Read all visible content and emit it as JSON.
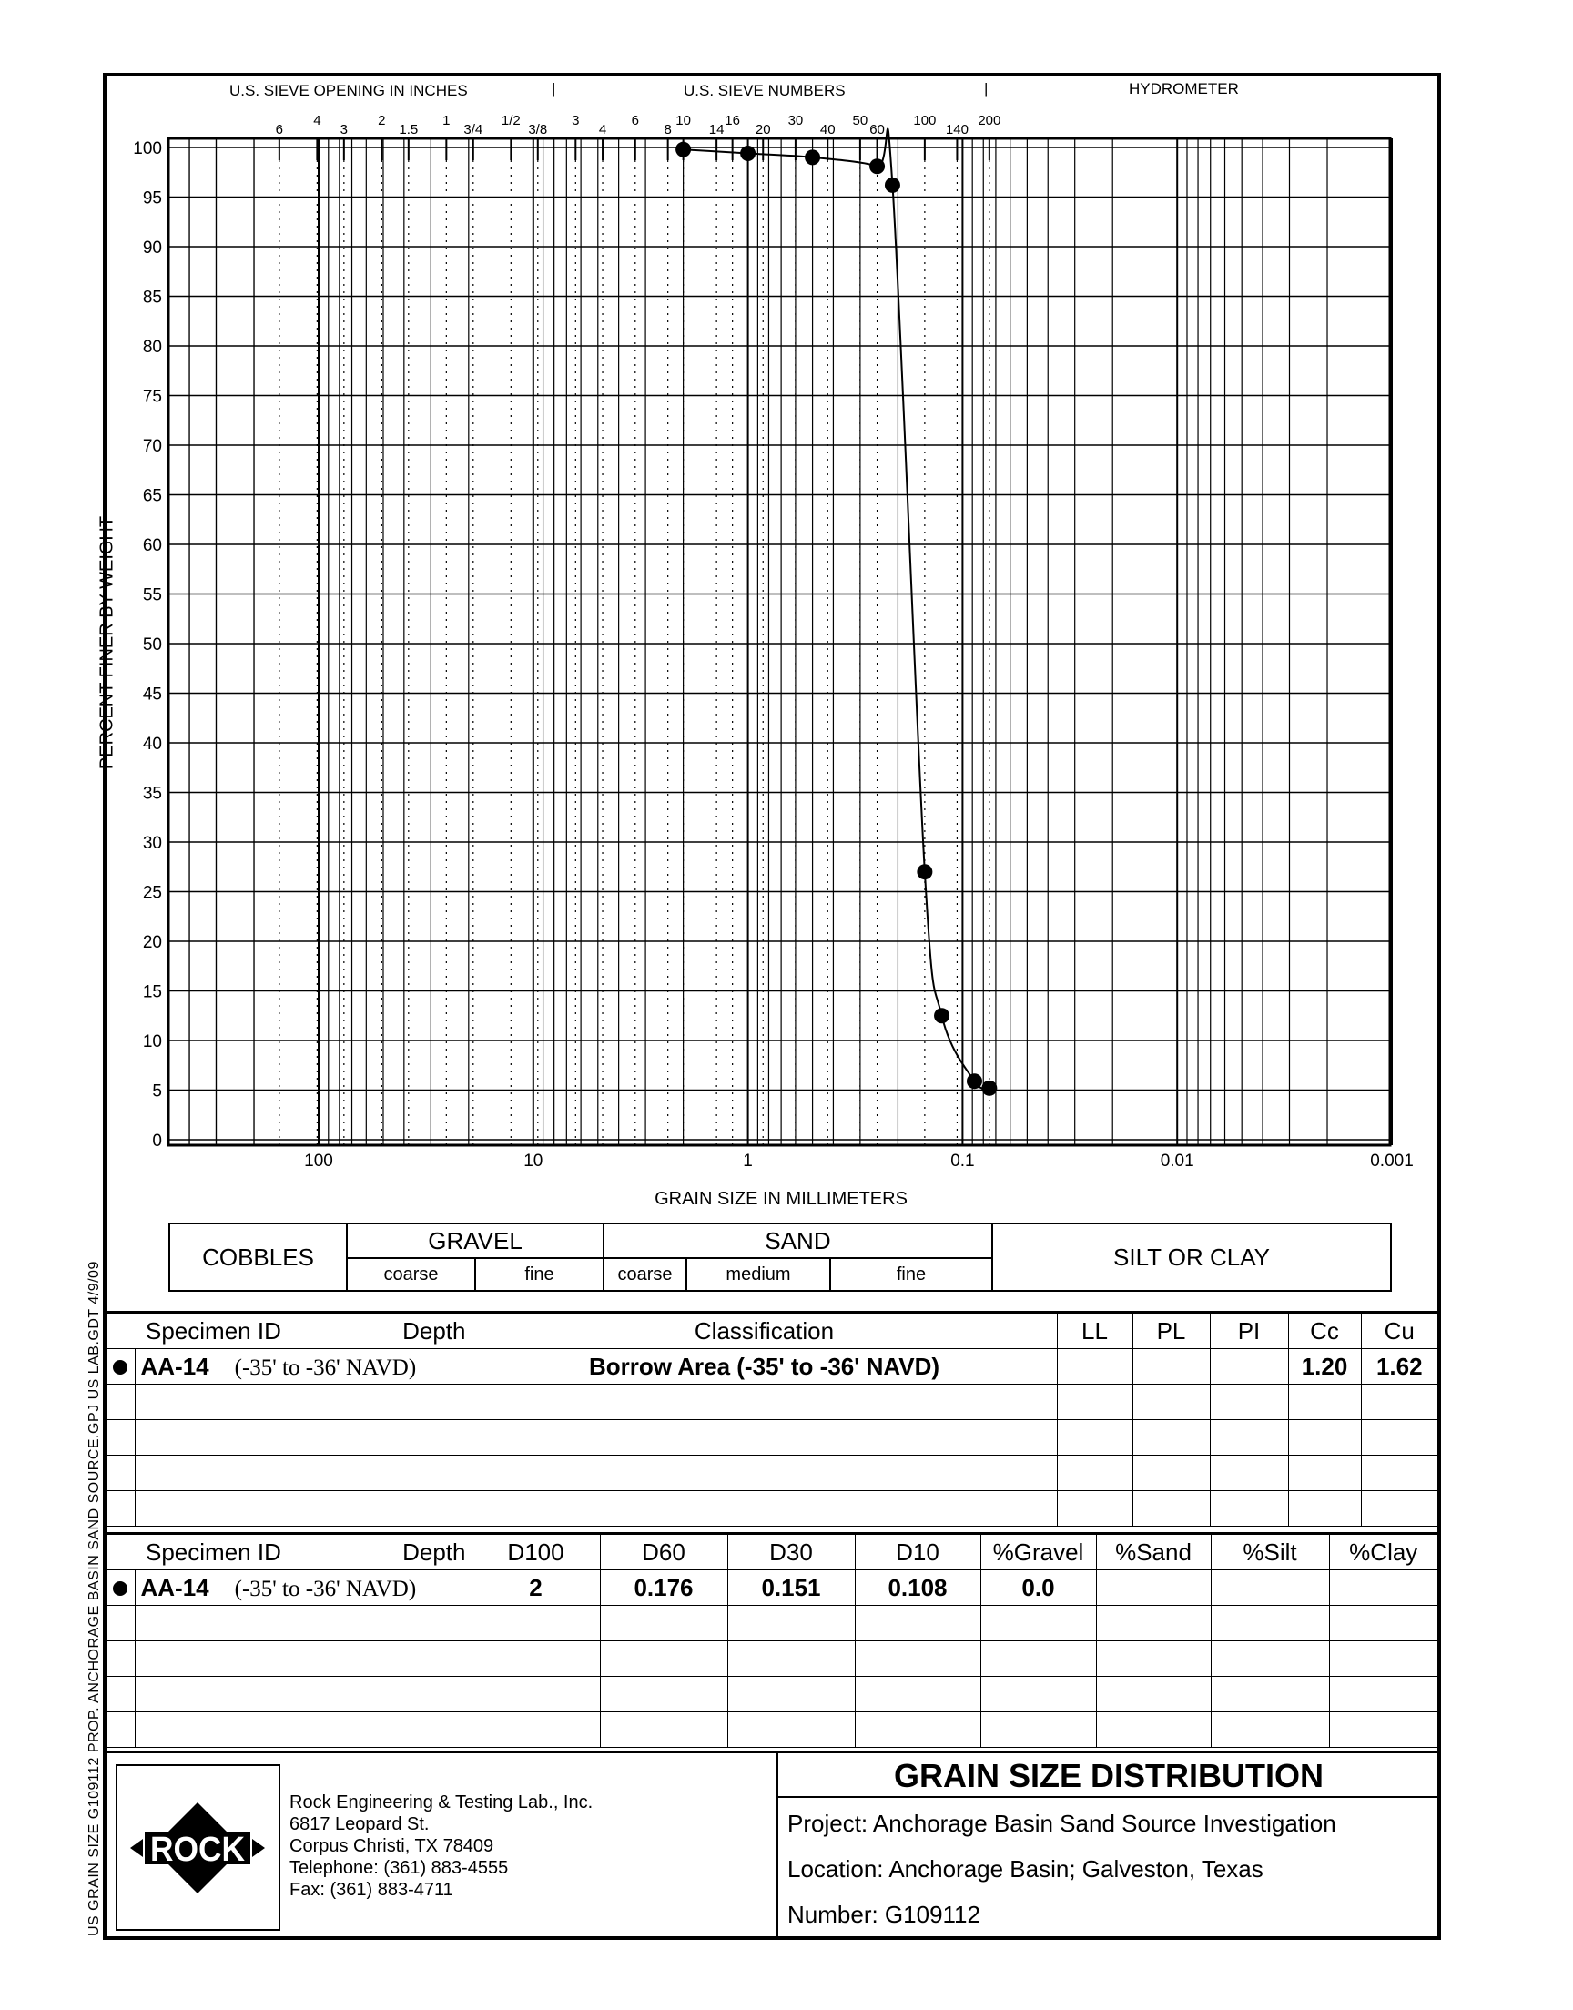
{
  "header": {
    "sieve_inches_label": "U.S. SIEVE OPENING IN INCHES",
    "sieve_numbers_label": "U.S. SIEVE NUMBERS",
    "hydrometer_label": "HYDROMETER",
    "separator": "|"
  },
  "side_label": "US GRAIN SIZE  G109112 PROP. ANCHORAGE BASIN SAND SOURCE.GPJ  US LAB.GDT  4/9/09",
  "chart_data": {
    "type": "line",
    "xlabel": "GRAIN SIZE IN MILLIMETERS",
    "ylabel": "PERCENT FINER BY WEIGHT",
    "xscale": "log",
    "x_reversed": true,
    "xlim": [
      500,
      0.001
    ],
    "ylim": [
      0,
      100
    ],
    "grid": true,
    "x_ticks": [
      {
        "value": 100,
        "label": "100"
      },
      {
        "value": 10,
        "label": "10"
      },
      {
        "value": 1,
        "label": "1"
      },
      {
        "value": 0.1,
        "label": "0.1"
      },
      {
        "value": 0.01,
        "label": "0.01"
      },
      {
        "value": 0.001,
        "label": "0.001"
      }
    ],
    "y_ticks": [
      "0",
      "5",
      "10",
      "15",
      "20",
      "25",
      "30",
      "35",
      "40",
      "45",
      "50",
      "55",
      "60",
      "65",
      "70",
      "75",
      "80",
      "85",
      "90",
      "95",
      "100"
    ],
    "sieves": [
      {
        "label": "6",
        "size_mm": 152.4
      },
      {
        "label": "4",
        "size_mm": 101.6
      },
      {
        "label": "3",
        "size_mm": 76.2
      },
      {
        "label": "2",
        "size_mm": 50.8
      },
      {
        "label": "1.5",
        "size_mm": 38.1
      },
      {
        "label": "1",
        "size_mm": 25.4
      },
      {
        "label": "3/4",
        "size_mm": 19.05
      },
      {
        "label": "1/2",
        "size_mm": 12.7
      },
      {
        "label": "3/8",
        "size_mm": 9.525
      },
      {
        "label": "3",
        "size_mm": 6.35
      },
      {
        "label": "4",
        "size_mm": 4.75
      },
      {
        "label": "6",
        "size_mm": 3.35
      },
      {
        "label": "8",
        "size_mm": 2.36
      },
      {
        "label": "10",
        "size_mm": 2.0
      },
      {
        "label": "14",
        "size_mm": 1.4
      },
      {
        "label": "16",
        "size_mm": 1.18
      },
      {
        "label": "20",
        "size_mm": 0.85
      },
      {
        "label": "30",
        "size_mm": 0.6
      },
      {
        "label": "40",
        "size_mm": 0.425
      },
      {
        "label": "50",
        "size_mm": 0.3
      },
      {
        "label": "60",
        "size_mm": 0.25
      },
      {
        "label": "100",
        "size_mm": 0.15
      },
      {
        "label": "140",
        "size_mm": 0.106
      },
      {
        "label": "200",
        "size_mm": 0.075
      }
    ],
    "series": [
      {
        "marker": "filled-circle",
        "x": [
          2.0,
          1.0,
          0.5,
          0.25,
          0.212,
          0.15,
          0.125,
          0.088,
          0.075
        ],
        "y": [
          99.8,
          99.4,
          99.0,
          98.1,
          96.2,
          27.0,
          12.5,
          5.9,
          5.2
        ]
      }
    ]
  },
  "soil_classes": {
    "cobbles": "COBBLES",
    "gravel": "GRAVEL",
    "sand": "SAND",
    "silt_clay": "SILT OR CLAY",
    "gravel_coarse": "coarse",
    "gravel_fine": "fine",
    "sand_coarse": "coarse",
    "sand_medium": "medium",
    "sand_fine": "fine"
  },
  "table1": {
    "headers": {
      "specimen": "Specimen ID",
      "depth": "Depth",
      "classification": "Classification",
      "ll": "LL",
      "pl": "PL",
      "pi": "PI",
      "cc": "Cc",
      "cu": "Cu"
    },
    "rows": [
      {
        "specimen": "AA-14",
        "depth": "(-35' to -36' NAVD)",
        "classification": "Borrow Area (-35' to -36' NAVD)",
        "ll": "",
        "pl": "",
        "pi": "",
        "cc": "1.20",
        "cu": "1.62"
      }
    ]
  },
  "table2": {
    "headers": {
      "specimen": "Specimen ID",
      "depth": "Depth",
      "d100": "D100",
      "d60": "D60",
      "d30": "D30",
      "d10": "D10",
      "gravel": "%Gravel",
      "sand": "%Sand",
      "silt": "%Silt",
      "clay": "%Clay"
    },
    "rows": [
      {
        "specimen": "AA-14",
        "depth": "(-35' to -36' NAVD)",
        "d100": "2",
        "d60": "0.176",
        "d30": "0.151",
        "d10": "0.108",
        "gravel": "0.0",
        "sand": "",
        "silt": "",
        "clay": ""
      }
    ]
  },
  "footer": {
    "logo_text": "ROCK",
    "company": [
      "Rock Engineering & Testing Lab., Inc.",
      "6817 Leopard St.",
      "Corpus Christi, TX 78409",
      "Telephone:  (361) 883-4555",
      "Fax:  (361) 883-4711"
    ],
    "title": "GRAIN SIZE DISTRIBUTION",
    "project": "Project:  Anchorage Basin Sand Source Investigation",
    "location": "Location:  Anchorage Basin; Galveston, Texas",
    "number": "Number:  G109112"
  }
}
